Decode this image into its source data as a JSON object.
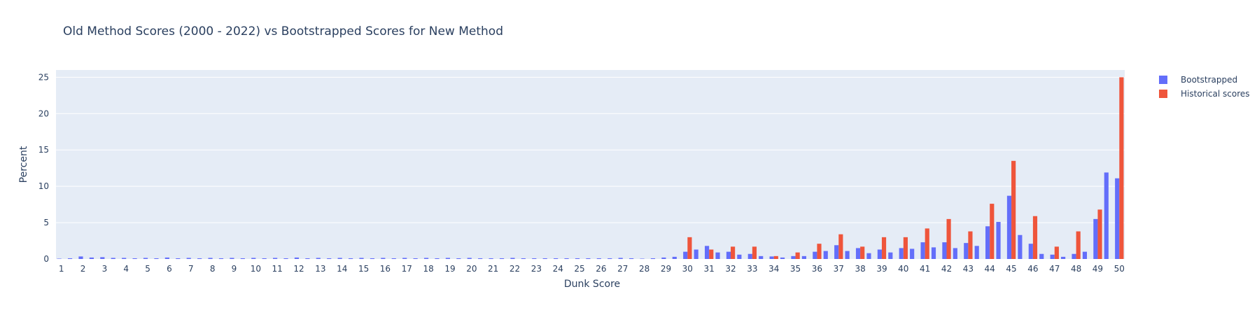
{
  "chart_data": {
    "type": "bar",
    "title": "Old Method Scores (2000 - 2022) vs Bootstrapped Scores for New Method",
    "xlabel": "Dunk Score",
    "ylabel": "Percent",
    "ylim": [
      0,
      26
    ],
    "yticks": [
      0,
      5,
      10,
      15,
      20,
      25
    ],
    "grid": true,
    "legend_position": "top-right",
    "x": [
      1,
      1.5,
      2,
      2.5,
      3,
      3.5,
      4,
      4.5,
      5,
      5.5,
      6,
      6.5,
      7,
      7.5,
      8,
      8.5,
      9,
      9.5,
      10,
      10.5,
      11,
      11.5,
      12,
      12.5,
      13,
      13.5,
      14,
      14.5,
      15,
      15.5,
      16,
      16.5,
      17,
      17.5,
      18,
      18.5,
      19,
      19.5,
      20,
      20.5,
      21,
      21.5,
      22,
      22.5,
      23,
      23.5,
      24,
      24.5,
      25,
      25.5,
      26,
      26.5,
      27,
      27.5,
      28,
      28.5,
      29,
      29.5,
      30,
      30.5,
      31,
      31.5,
      32,
      32.5,
      33,
      33.5,
      34,
      34.5,
      35,
      35.5,
      36,
      36.5,
      37,
      37.5,
      38,
      38.5,
      39,
      39.5,
      40,
      40.5,
      41,
      41.5,
      42,
      42.5,
      43,
      43.5,
      44,
      44.5,
      45,
      45.5,
      46,
      46.5,
      47,
      47.5,
      48,
      48.5,
      49,
      49.5,
      50
    ],
    "xtick_labels": [
      "1",
      "2",
      "3",
      "4",
      "5",
      "6",
      "7",
      "8",
      "9",
      "10",
      "11",
      "12",
      "13",
      "14",
      "15",
      "16",
      "17",
      "18",
      "19",
      "20",
      "21",
      "22",
      "23",
      "24",
      "25",
      "26",
      "27",
      "28",
      "29",
      "30",
      "31",
      "32",
      "33",
      "34",
      "35",
      "36",
      "37",
      "38",
      "39",
      "40",
      "41",
      "42",
      "43",
      "44",
      "45",
      "46",
      "47",
      "48",
      "49",
      "50"
    ],
    "series": [
      {
        "name": "Bootstrapped",
        "color": "#636efa",
        "values": [
          0.05,
          0.1,
          0.35,
          0.2,
          0.25,
          0.15,
          0.15,
          0.1,
          0.15,
          0.1,
          0.2,
          0.1,
          0.15,
          0.1,
          0.15,
          0.1,
          0.15,
          0.1,
          0.15,
          0.1,
          0.15,
          0.1,
          0.2,
          0.1,
          0.15,
          0.1,
          0.15,
          0.1,
          0.15,
          0.1,
          0.15,
          0.1,
          0.15,
          0.1,
          0.15,
          0.1,
          0.15,
          0.1,
          0.15,
          0.1,
          0.1,
          0.1,
          0.15,
          0.1,
          0.1,
          0.1,
          0.1,
          0.1,
          0.1,
          0.1,
          0.1,
          0.1,
          0.15,
          0.1,
          0.05,
          0.1,
          0.2,
          0.3,
          1.0,
          1.3,
          1.8,
          0.9,
          1.0,
          0.6,
          0.7,
          0.4,
          0.35,
          0.2,
          0.4,
          0.4,
          1.0,
          1.1,
          1.9,
          1.1,
          1.5,
          0.8,
          1.3,
          0.9,
          1.5,
          1.4,
          2.3,
          1.6,
          2.3,
          1.5,
          2.2,
          1.8,
          4.5,
          5.1,
          8.7,
          3.3,
          2.1,
          0.7,
          0.6,
          0.3,
          0.7,
          1.0,
          5.5,
          11.9,
          11.1
        ]
      },
      {
        "name": "Historical scores",
        "color": "#ef553b",
        "values": [
          0,
          0,
          0,
          0,
          0,
          0,
          0,
          0,
          0,
          0,
          0,
          0,
          0,
          0,
          0,
          0,
          0,
          0,
          0,
          0,
          0,
          0,
          0,
          0,
          0,
          0,
          0,
          0,
          0,
          0,
          0,
          0,
          0,
          0,
          0,
          0,
          0,
          0,
          0,
          0,
          0,
          0,
          0,
          0,
          0,
          0,
          0,
          0,
          0,
          0,
          0,
          0,
          0,
          0,
          0,
          0,
          0,
          0,
          3.0,
          0,
          1.3,
          0,
          1.7,
          0,
          1.7,
          0,
          0.4,
          0,
          0.9,
          0,
          2.1,
          0,
          3.4,
          0,
          1.7,
          0,
          3.0,
          0,
          3.0,
          0,
          4.2,
          0,
          5.5,
          0,
          3.8,
          0,
          7.6,
          0,
          13.5,
          0,
          5.9,
          0,
          1.7,
          0,
          3.8,
          0,
          6.8,
          0,
          25.0
        ]
      }
    ]
  }
}
